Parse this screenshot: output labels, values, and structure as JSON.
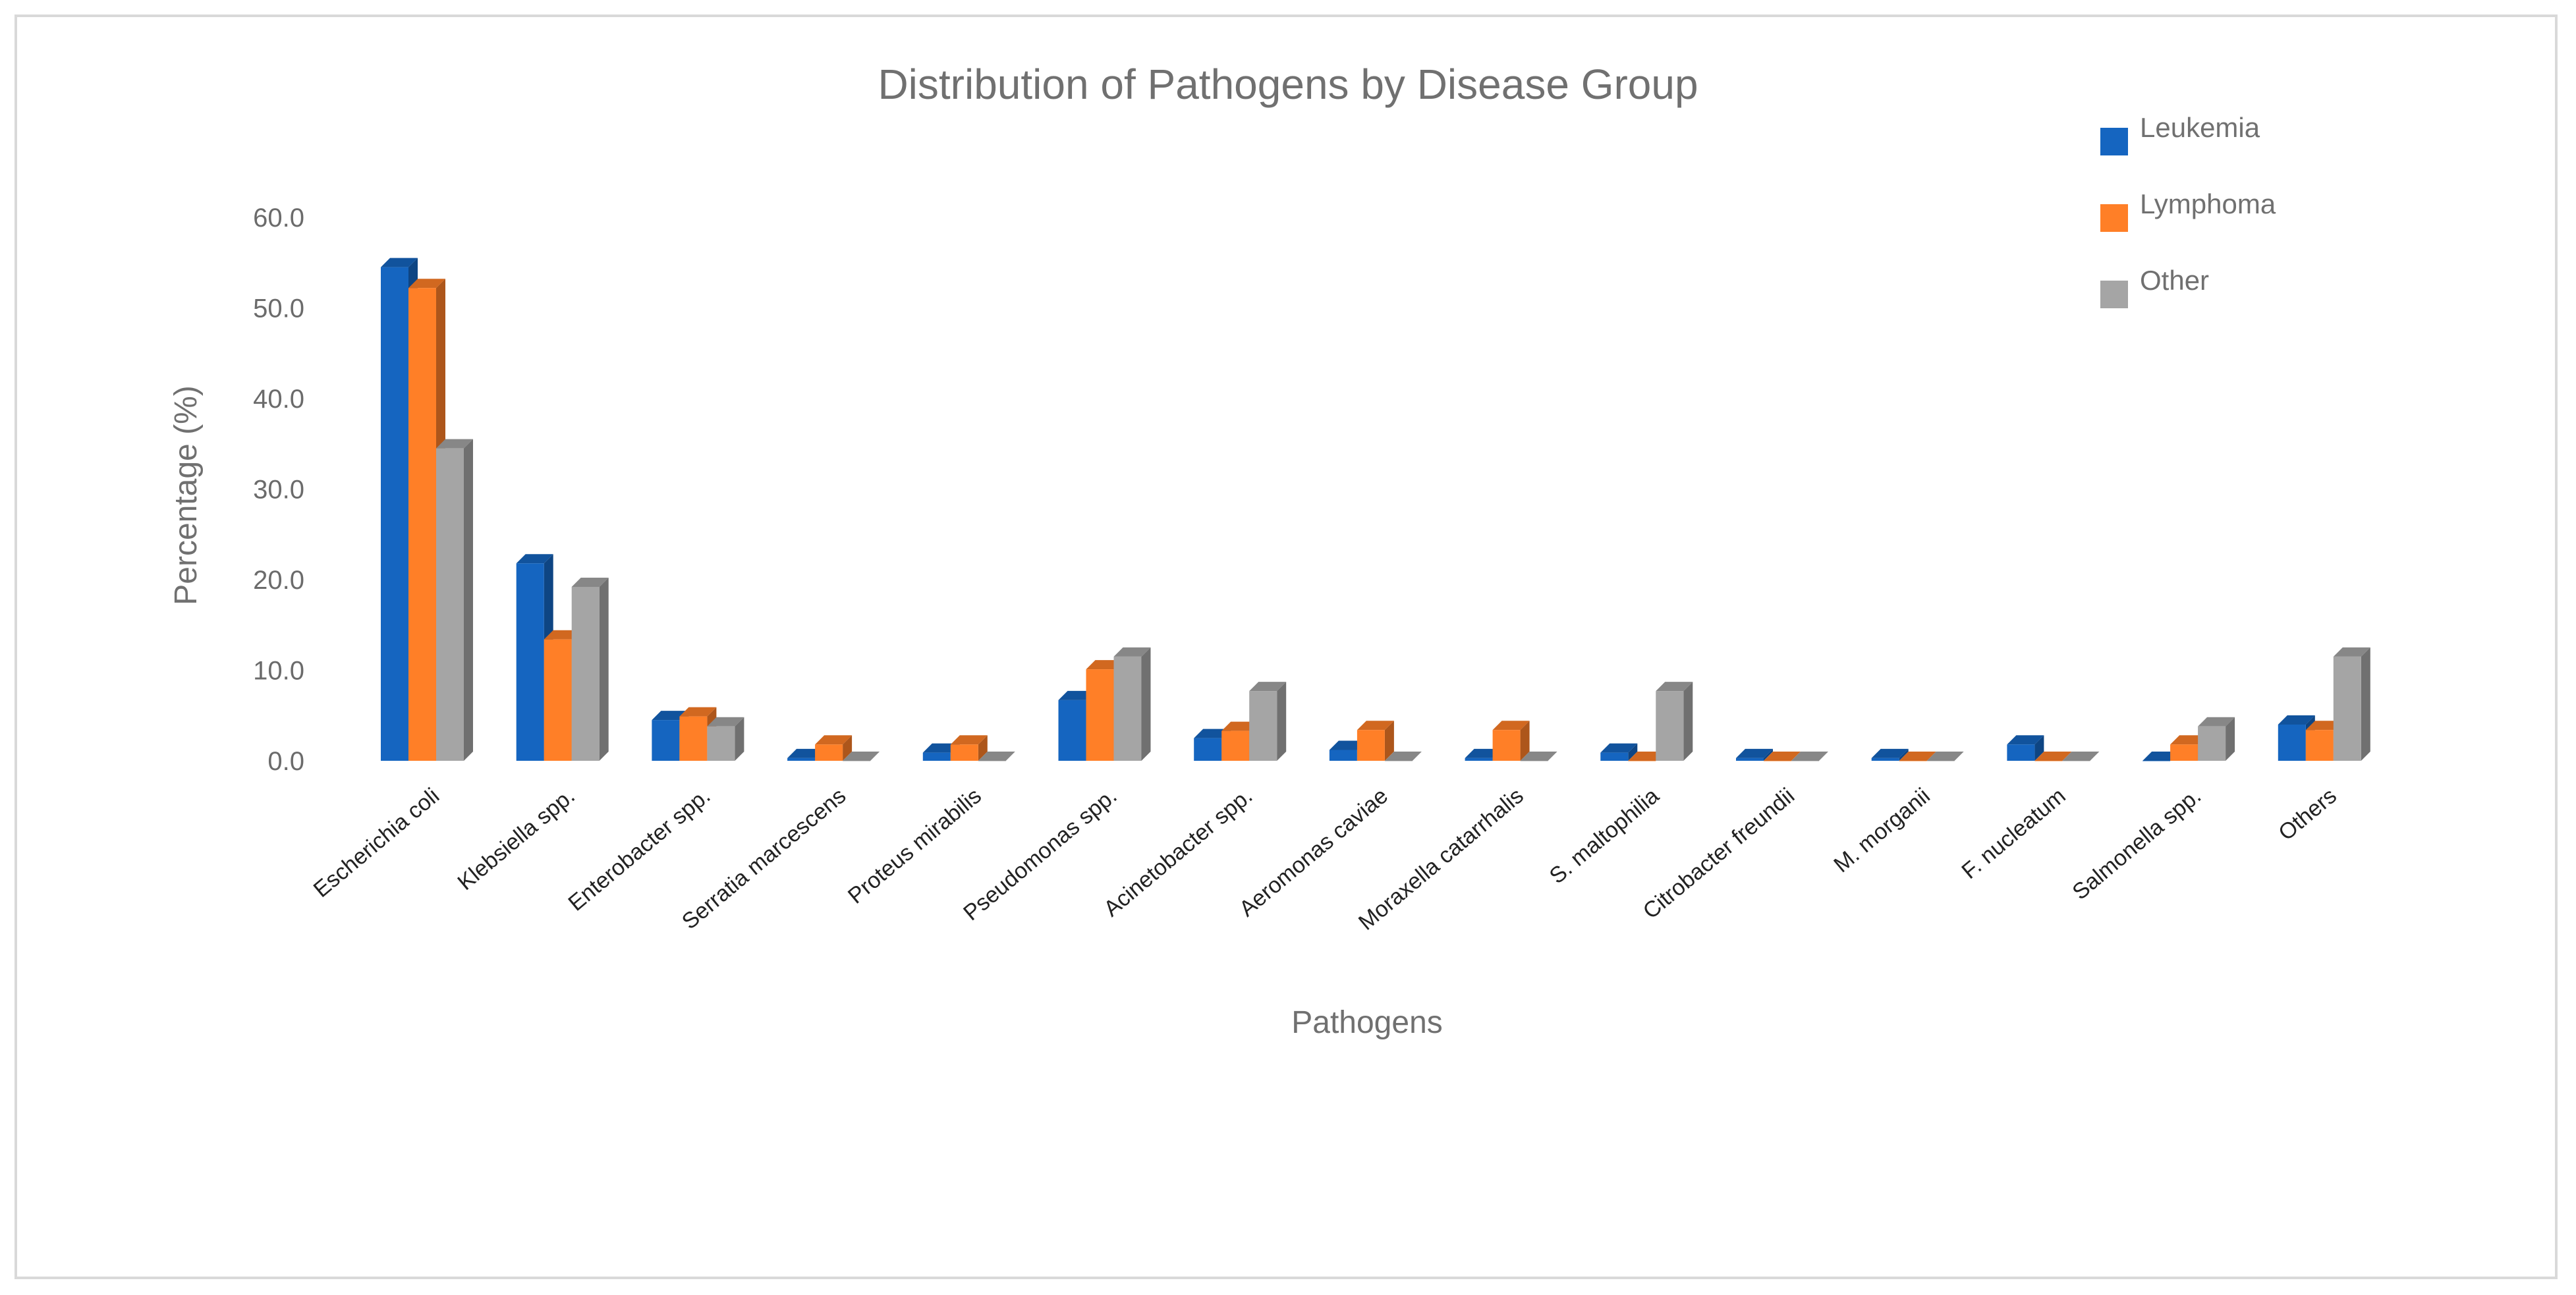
{
  "chart_data": {
    "type": "bar",
    "style": "3d-clustered-column",
    "title": "Distribution of Pathogens by Disease Group",
    "xlabel": "Pathogens",
    "ylabel": "Percentage (%)",
    "ylim": [
      0,
      60
    ],
    "yticks": [
      "0.0",
      "10.0",
      "20.0",
      "30.0",
      "40.0",
      "50.0",
      "60.0"
    ],
    "grid": false,
    "legend_position": "top-right",
    "categories": [
      "Escherichia coli",
      "Klebsiella spp.",
      "Enterobacter spp.",
      "Serratia marcescens",
      "Proteus mirabilis",
      "Pseudomonas spp.",
      "Acinetobacter spp.",
      "Aeromonas caviae",
      "Moraxella catarrhalis",
      "S. maltophilia",
      "Citrobacter freundii",
      "M. morganii",
      "F. nucleatum",
      "Salmonella spp.",
      "Others"
    ],
    "series": [
      {
        "name": "Leukemia",
        "color": "#1565c0",
        "values": [
          54.5,
          21.8,
          4.5,
          0.3,
          0.9,
          6.7,
          2.5,
          1.2,
          0.3,
          0.9,
          0.3,
          0.3,
          1.8,
          0.0,
          4.0
        ]
      },
      {
        "name": "Lymphoma",
        "color": "#ff7f27",
        "values": [
          52.2,
          13.4,
          4.9,
          1.8,
          1.8,
          10.1,
          3.3,
          3.4,
          3.4,
          0.0,
          0.0,
          0.0,
          0.0,
          1.8,
          3.4
        ]
      },
      {
        "name": "Other",
        "color": "#a5a5a5",
        "values": [
          34.5,
          19.2,
          3.8,
          0.0,
          0.0,
          11.5,
          7.7,
          0.0,
          0.0,
          7.7,
          0.0,
          0.0,
          0.0,
          3.8,
          11.5
        ]
      }
    ]
  }
}
